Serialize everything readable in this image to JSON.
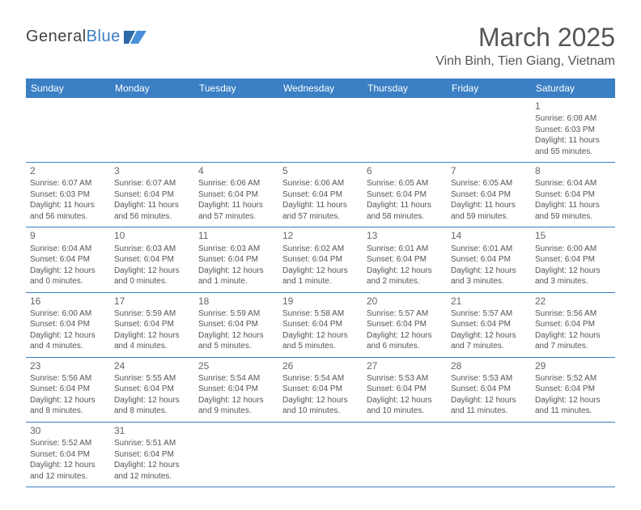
{
  "brand": {
    "part1": "General",
    "part2": "Blue"
  },
  "title": "March 2025",
  "location": "Vinh Binh, Tien Giang, Vietnam",
  "colors": {
    "header_bg": "#3b7fc4",
    "header_text": "#ffffff",
    "cell_border": "#3b7fc4",
    "body_text": "#555555",
    "page_bg": "#ffffff"
  },
  "typography": {
    "month_fontsize": 32,
    "location_fontsize": 16,
    "dayheader_fontsize": 12,
    "daynum_fontsize": 12,
    "info_fontsize": 10
  },
  "day_headers": [
    "Sunday",
    "Monday",
    "Tuesday",
    "Wednesday",
    "Thursday",
    "Friday",
    "Saturday"
  ],
  "weeks": [
    [
      null,
      null,
      null,
      null,
      null,
      null,
      {
        "n": "1",
        "sunrise": "Sunrise: 6:08 AM",
        "sunset": "Sunset: 6:03 PM",
        "daylight": "Daylight: 11 hours and 55 minutes."
      }
    ],
    [
      {
        "n": "2",
        "sunrise": "Sunrise: 6:07 AM",
        "sunset": "Sunset: 6:03 PM",
        "daylight": "Daylight: 11 hours and 56 minutes."
      },
      {
        "n": "3",
        "sunrise": "Sunrise: 6:07 AM",
        "sunset": "Sunset: 6:04 PM",
        "daylight": "Daylight: 11 hours and 56 minutes."
      },
      {
        "n": "4",
        "sunrise": "Sunrise: 6:06 AM",
        "sunset": "Sunset: 6:04 PM",
        "daylight": "Daylight: 11 hours and 57 minutes."
      },
      {
        "n": "5",
        "sunrise": "Sunrise: 6:06 AM",
        "sunset": "Sunset: 6:04 PM",
        "daylight": "Daylight: 11 hours and 57 minutes."
      },
      {
        "n": "6",
        "sunrise": "Sunrise: 6:05 AM",
        "sunset": "Sunset: 6:04 PM",
        "daylight": "Daylight: 11 hours and 58 minutes."
      },
      {
        "n": "7",
        "sunrise": "Sunrise: 6:05 AM",
        "sunset": "Sunset: 6:04 PM",
        "daylight": "Daylight: 11 hours and 59 minutes."
      },
      {
        "n": "8",
        "sunrise": "Sunrise: 6:04 AM",
        "sunset": "Sunset: 6:04 PM",
        "daylight": "Daylight: 11 hours and 59 minutes."
      }
    ],
    [
      {
        "n": "9",
        "sunrise": "Sunrise: 6:04 AM",
        "sunset": "Sunset: 6:04 PM",
        "daylight": "Daylight: 12 hours and 0 minutes."
      },
      {
        "n": "10",
        "sunrise": "Sunrise: 6:03 AM",
        "sunset": "Sunset: 6:04 PM",
        "daylight": "Daylight: 12 hours and 0 minutes."
      },
      {
        "n": "11",
        "sunrise": "Sunrise: 6:03 AM",
        "sunset": "Sunset: 6:04 PM",
        "daylight": "Daylight: 12 hours and 1 minute."
      },
      {
        "n": "12",
        "sunrise": "Sunrise: 6:02 AM",
        "sunset": "Sunset: 6:04 PM",
        "daylight": "Daylight: 12 hours and 1 minute."
      },
      {
        "n": "13",
        "sunrise": "Sunrise: 6:01 AM",
        "sunset": "Sunset: 6:04 PM",
        "daylight": "Daylight: 12 hours and 2 minutes."
      },
      {
        "n": "14",
        "sunrise": "Sunrise: 6:01 AM",
        "sunset": "Sunset: 6:04 PM",
        "daylight": "Daylight: 12 hours and 3 minutes."
      },
      {
        "n": "15",
        "sunrise": "Sunrise: 6:00 AM",
        "sunset": "Sunset: 6:04 PM",
        "daylight": "Daylight: 12 hours and 3 minutes."
      }
    ],
    [
      {
        "n": "16",
        "sunrise": "Sunrise: 6:00 AM",
        "sunset": "Sunset: 6:04 PM",
        "daylight": "Daylight: 12 hours and 4 minutes."
      },
      {
        "n": "17",
        "sunrise": "Sunrise: 5:59 AM",
        "sunset": "Sunset: 6:04 PM",
        "daylight": "Daylight: 12 hours and 4 minutes."
      },
      {
        "n": "18",
        "sunrise": "Sunrise: 5:59 AM",
        "sunset": "Sunset: 6:04 PM",
        "daylight": "Daylight: 12 hours and 5 minutes."
      },
      {
        "n": "19",
        "sunrise": "Sunrise: 5:58 AM",
        "sunset": "Sunset: 6:04 PM",
        "daylight": "Daylight: 12 hours and 5 minutes."
      },
      {
        "n": "20",
        "sunrise": "Sunrise: 5:57 AM",
        "sunset": "Sunset: 6:04 PM",
        "daylight": "Daylight: 12 hours and 6 minutes."
      },
      {
        "n": "21",
        "sunrise": "Sunrise: 5:57 AM",
        "sunset": "Sunset: 6:04 PM",
        "daylight": "Daylight: 12 hours and 7 minutes."
      },
      {
        "n": "22",
        "sunrise": "Sunrise: 5:56 AM",
        "sunset": "Sunset: 6:04 PM",
        "daylight": "Daylight: 12 hours and 7 minutes."
      }
    ],
    [
      {
        "n": "23",
        "sunrise": "Sunrise: 5:56 AM",
        "sunset": "Sunset: 6:04 PM",
        "daylight": "Daylight: 12 hours and 8 minutes."
      },
      {
        "n": "24",
        "sunrise": "Sunrise: 5:55 AM",
        "sunset": "Sunset: 6:04 PM",
        "daylight": "Daylight: 12 hours and 8 minutes."
      },
      {
        "n": "25",
        "sunrise": "Sunrise: 5:54 AM",
        "sunset": "Sunset: 6:04 PM",
        "daylight": "Daylight: 12 hours and 9 minutes."
      },
      {
        "n": "26",
        "sunrise": "Sunrise: 5:54 AM",
        "sunset": "Sunset: 6:04 PM",
        "daylight": "Daylight: 12 hours and 10 minutes."
      },
      {
        "n": "27",
        "sunrise": "Sunrise: 5:53 AM",
        "sunset": "Sunset: 6:04 PM",
        "daylight": "Daylight: 12 hours and 10 minutes."
      },
      {
        "n": "28",
        "sunrise": "Sunrise: 5:53 AM",
        "sunset": "Sunset: 6:04 PM",
        "daylight": "Daylight: 12 hours and 11 minutes."
      },
      {
        "n": "29",
        "sunrise": "Sunrise: 5:52 AM",
        "sunset": "Sunset: 6:04 PM",
        "daylight": "Daylight: 12 hours and 11 minutes."
      }
    ],
    [
      {
        "n": "30",
        "sunrise": "Sunrise: 5:52 AM",
        "sunset": "Sunset: 6:04 PM",
        "daylight": "Daylight: 12 hours and 12 minutes."
      },
      {
        "n": "31",
        "sunrise": "Sunrise: 5:51 AM",
        "sunset": "Sunset: 6:04 PM",
        "daylight": "Daylight: 12 hours and 12 minutes."
      },
      null,
      null,
      null,
      null,
      null
    ]
  ]
}
